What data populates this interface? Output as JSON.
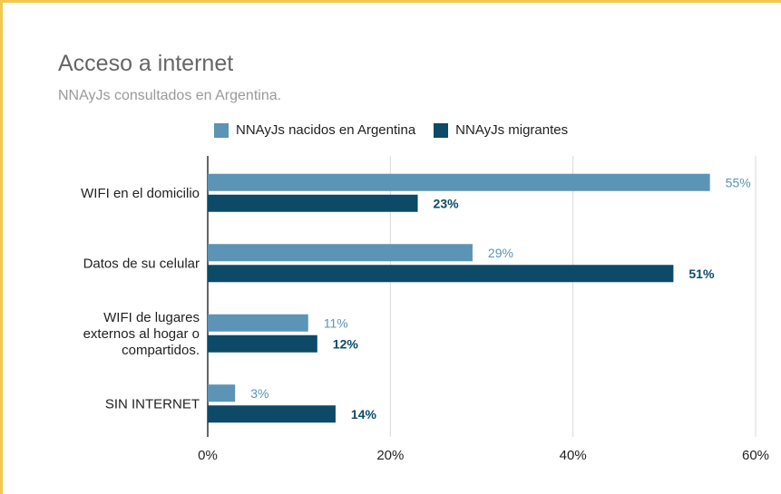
{
  "chart_data": {
    "type": "bar",
    "orientation": "horizontal",
    "title": "Acceso a internet",
    "subtitle": "NNAyJs consultados en Argentina.",
    "categories": [
      [
        "WIFI en el domicilio"
      ],
      [
        "Datos de su celular"
      ],
      [
        "WIFI de lugares",
        "externos al hogar o",
        "compartidos."
      ],
      [
        "SIN INTERNET"
      ]
    ],
    "series": [
      {
        "name": "NNAyJs nacidos en Argentina",
        "color": "#5b94b4",
        "values": [
          55,
          29,
          11,
          3
        ],
        "labels": [
          "55%",
          "29%",
          "11%",
          "3%"
        ]
      },
      {
        "name": "NNAyJs migrantes",
        "color": "#0c4a68",
        "values": [
          23,
          51,
          12,
          14
        ],
        "labels": [
          "23%",
          "51%",
          "12%",
          "14%"
        ]
      }
    ],
    "xlim": [
      0,
      60
    ],
    "xticks": [
      0,
      20,
      40,
      60
    ],
    "xtick_labels": [
      "0%",
      "20%",
      "40%",
      "60%"
    ],
    "grid": true,
    "legend_position": "top"
  }
}
